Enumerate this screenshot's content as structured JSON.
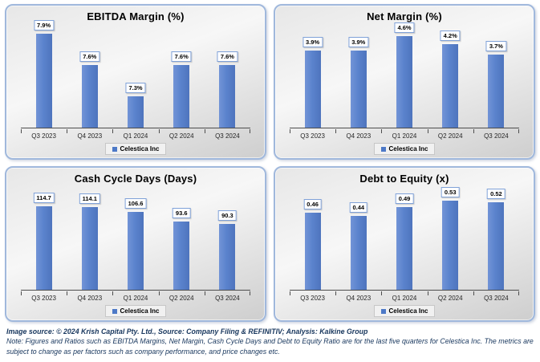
{
  "footer": {
    "source_line": "Image source: © 2024 Krish Capital Pty. Ltd., Source: Company Filing & REFINITIV; Analysis: Kalkine Group",
    "note_line": "Note: Figures and Ratios such as EBITDA Margins, Net Margin, Cash Cycle Days and Debt to Equity Ratio are for the last five quarters for Celestica Inc. The metrics are subject to change as per factors such as company performance, and price changes etc."
  },
  "colors": {
    "bar": "#5B83CD",
    "panel_border": "#A0B8DC",
    "data_label_border": "#7FA1D8",
    "axis": "#4d4d4d",
    "footer_text": "#17365D"
  },
  "chart_data": [
    {
      "type": "bar",
      "title": "EBITDA Margin (%)",
      "categories": [
        "Q3 2023",
        "Q4 2023",
        "Q1 2024",
        "Q2 2024",
        "Q3 2024"
      ],
      "values": [
        7.9,
        7.6,
        7.3,
        7.6,
        7.6
      ],
      "value_labels": [
        "7.9%",
        "7.6%",
        "7.3%",
        "7.6%",
        "7.6%"
      ],
      "ylim": [
        7.0,
        8.05
      ],
      "xlabel": "",
      "ylabel": "",
      "grid": false,
      "legend": "Celestica Inc",
      "legend_position": "bottom"
    },
    {
      "type": "bar",
      "title": "Net Margin (%)",
      "categories": [
        "Q3 2023",
        "Q4 2023",
        "Q1 2024",
        "Q2 2024",
        "Q3 2024"
      ],
      "values": [
        3.9,
        3.9,
        4.6,
        4.2,
        3.7
      ],
      "value_labels": [
        "3.9%",
        "3.9%",
        "4.6%",
        "4.2%",
        "3.7%"
      ],
      "ylim": [
        0,
        5.5
      ],
      "xlabel": "",
      "ylabel": "",
      "grid": false,
      "legend": "Celestica Inc",
      "legend_position": "bottom"
    },
    {
      "type": "bar",
      "title": "Cash Cycle Days (Days)",
      "categories": [
        "Q3 2023",
        "Q4 2023",
        "Q1 2024",
        "Q2 2024",
        "Q3 2024"
      ],
      "values": [
        114.7,
        114.1,
        106.6,
        93.6,
        90.3
      ],
      "value_labels": [
        "114.7",
        "114.1",
        "106.6",
        "93.6",
        "90.3"
      ],
      "ylim": [
        0,
        150
      ],
      "xlabel": "",
      "ylabel": "",
      "grid": false,
      "legend": "Celestica Inc",
      "legend_position": "bottom"
    },
    {
      "type": "bar",
      "title": "Debt to Equity (x)",
      "categories": [
        "Q3 2023",
        "Q4 2023",
        "Q1 2024",
        "Q2 2024",
        "Q3 2024"
      ],
      "values": [
        0.46,
        0.44,
        0.49,
        0.53,
        0.52
      ],
      "value_labels": [
        "0.46",
        "0.44",
        "0.49",
        "0.53",
        "0.52"
      ],
      "ylim": [
        0,
        0.65
      ],
      "xlabel": "",
      "ylabel": "",
      "grid": false,
      "legend": "Celestica Inc",
      "legend_position": "bottom"
    }
  ]
}
